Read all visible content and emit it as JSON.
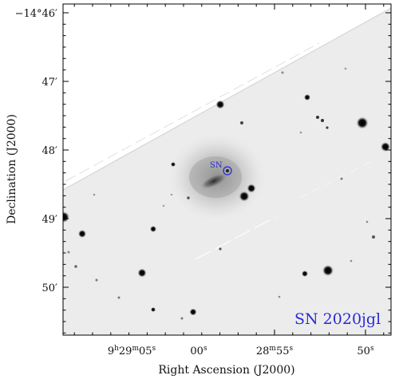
{
  "figure": {
    "supernova_name": "SN 2020jgl",
    "marker_label": "SN",
    "marker_color": "#2a2ad6",
    "title_color": "#2a2ad6"
  },
  "axes": {
    "xlabel": "Right Ascension (J2000)",
    "ylabel": "Declination (J2000)",
    "x_ticks": [
      {
        "main": "9",
        "sup1": "h",
        "part2": "29",
        "sup2": "m",
        "part3": "05",
        "sup3": "s"
      },
      {
        "main": "00",
        "sup1": "s"
      },
      {
        "main": "28",
        "sup1": "m",
        "part2": "55",
        "sup2": "s"
      },
      {
        "main": "50",
        "sup1": "s"
      }
    ],
    "y_ticks": [
      "−14°46′",
      "47′",
      "48′",
      "49′",
      "50′"
    ]
  }
}
